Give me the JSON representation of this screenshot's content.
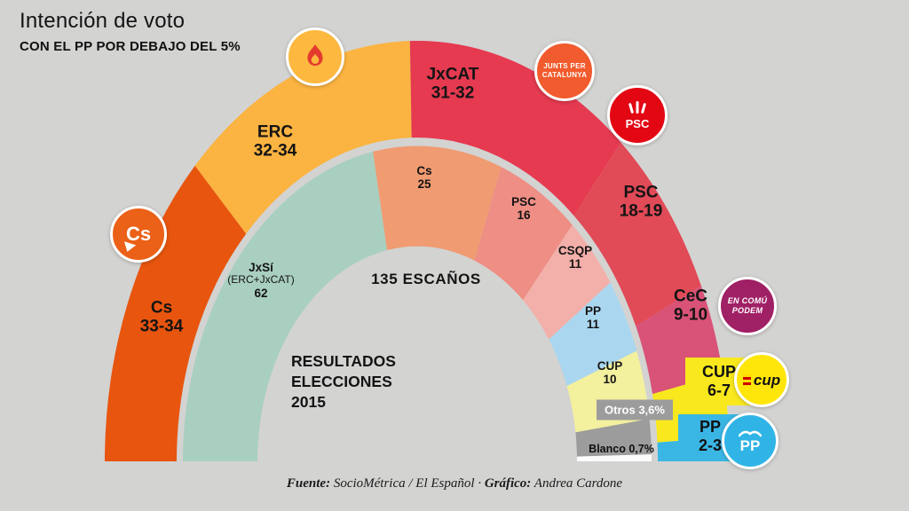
{
  "header": {
    "title": "Intención de voto",
    "subtitle": "CON EL PP POR DEBAJO DEL 5%"
  },
  "chart_data": {
    "type": "pie",
    "variant": "semicircle-gauge, two concentric rings",
    "total_label": "135 ESCAÑOS",
    "total_seats": 135,
    "caption_lines": [
      "RESULTADOS",
      "ELECCIONES",
      "2015"
    ],
    "outer_ring": {
      "title": "Intención de voto",
      "segments": [
        {
          "party": "Cs",
          "seats": "33-34",
          "value": 33.5,
          "color": "#e8550e"
        },
        {
          "party": "ERC",
          "seats": "32-34",
          "value": 33,
          "color": "#fbb441"
        },
        {
          "party": "JxCAT",
          "seats": "31-32",
          "value": 31.5,
          "color": "#e53a50"
        },
        {
          "party": "PSC",
          "seats": "18-19",
          "value": 18.5,
          "color": "#e14a57"
        },
        {
          "party": "CeC",
          "seats": "9-10",
          "value": 9.5,
          "color": "#d95277"
        },
        {
          "party": "CUP",
          "seats": "6-7",
          "value": 6.5,
          "color": "#f9e81d"
        },
        {
          "party": "PP",
          "seats": "2-3",
          "value": 2.5,
          "color": "#3ab6e5"
        }
      ]
    },
    "inner_ring": {
      "title": "Resultados elecciones 2015",
      "segments": [
        {
          "party": "JxSí",
          "detail": "(ERC+JxCAT)",
          "seats": "62",
          "value": 62,
          "color": "#a9cfc1"
        },
        {
          "party": "Cs",
          "seats": "25",
          "value": 25,
          "color": "#f09b72"
        },
        {
          "party": "PSC",
          "seats": "16",
          "value": 16,
          "color": "#ee8e84"
        },
        {
          "party": "CSQP",
          "seats": "11",
          "value": 11,
          "color": "#f3afa9"
        },
        {
          "party": "PP",
          "seats": "11",
          "value": 11,
          "color": "#aad7ef"
        },
        {
          "party": "CUP",
          "seats": "10",
          "value": 10,
          "color": "#f3f09e"
        },
        {
          "party": "Otros",
          "seats": "3,6%",
          "pct": 3.6,
          "color": "#9c9c9c"
        },
        {
          "party": "Blanco",
          "seats": "0,7%",
          "pct": 0.7,
          "color": "#fbfbfb"
        }
      ]
    }
  },
  "badges": [
    {
      "id": "cs",
      "text": "Cs",
      "bg": "#eb6117"
    },
    {
      "id": "erc",
      "bg": "#fcb83f"
    },
    {
      "id": "jxcat",
      "lines": [
        "JUNTS PER",
        "CATALUNYA"
      ],
      "bg": "#f15b2d"
    },
    {
      "id": "psc",
      "text": "PSC",
      "bg": "#e30613"
    },
    {
      "id": "cec",
      "lines": [
        "EN COMÚ",
        "PODEM"
      ],
      "bg": "#a02065"
    },
    {
      "id": "cup",
      "text": "cup",
      "bg": "#ffe60a"
    },
    {
      "id": "pp",
      "text": "PP",
      "bg": "#30b4e6"
    }
  ],
  "footer": {
    "source_label": "Fuente:",
    "source_text": "SocioMétrica / El Español",
    "separator": "·",
    "credit_label": "Gráfico:",
    "credit_text": "Andrea Cardone"
  }
}
